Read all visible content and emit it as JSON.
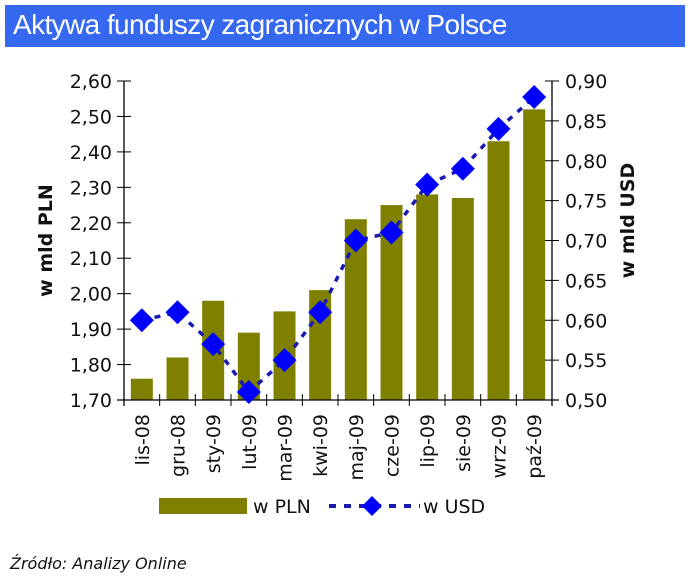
{
  "header": {
    "title": "Aktywa funduszy zagranicznych w Polsce"
  },
  "colors": {
    "title_bg": "#3568ee",
    "bar": "#808000",
    "marker": "#0000ff",
    "line": "#1a1ab0"
  },
  "source": "Źródło: Analizy Online",
  "chart_data": {
    "type": "bar+line",
    "title": "Aktywa funduszy zagranicznych w Polsce",
    "categories": [
      "lis-08",
      "gru-08",
      "sty-09",
      "lut-09",
      "mar-09",
      "kwi-09",
      "maj-09",
      "cze-09",
      "lip-09",
      "sie-09",
      "wrz-09",
      "paź-09"
    ],
    "series": [
      {
        "name": "w PLN",
        "type": "bar",
        "axis": "left",
        "values": [
          1.76,
          1.82,
          1.98,
          1.89,
          1.95,
          2.01,
          2.21,
          2.25,
          2.28,
          2.27,
          2.43,
          2.52
        ]
      },
      {
        "name": "w USD",
        "type": "line",
        "axis": "right",
        "style": "dashed with diamond markers",
        "values": [
          0.6,
          0.61,
          0.57,
          0.51,
          0.55,
          0.61,
          0.7,
          0.71,
          0.77,
          0.79,
          0.84,
          0.88
        ]
      }
    ],
    "ylabel": "w mld PLN",
    "y2label": "w mld USD",
    "ylim": [
      1.7,
      2.6
    ],
    "y2lim": [
      0.5,
      0.9
    ],
    "yticks": [
      "1,70",
      "1,80",
      "1,90",
      "2,00",
      "2,10",
      "2,20",
      "2,30",
      "2,40",
      "2,50",
      "2,60"
    ],
    "y2ticks": [
      "0,50",
      "0,55",
      "0,60",
      "0,65",
      "0,70",
      "0,75",
      "0,80",
      "0,85",
      "0,90"
    ],
    "legend": [
      "w PLN",
      "w USD"
    ],
    "legend_position": "bottom",
    "grid": false
  }
}
